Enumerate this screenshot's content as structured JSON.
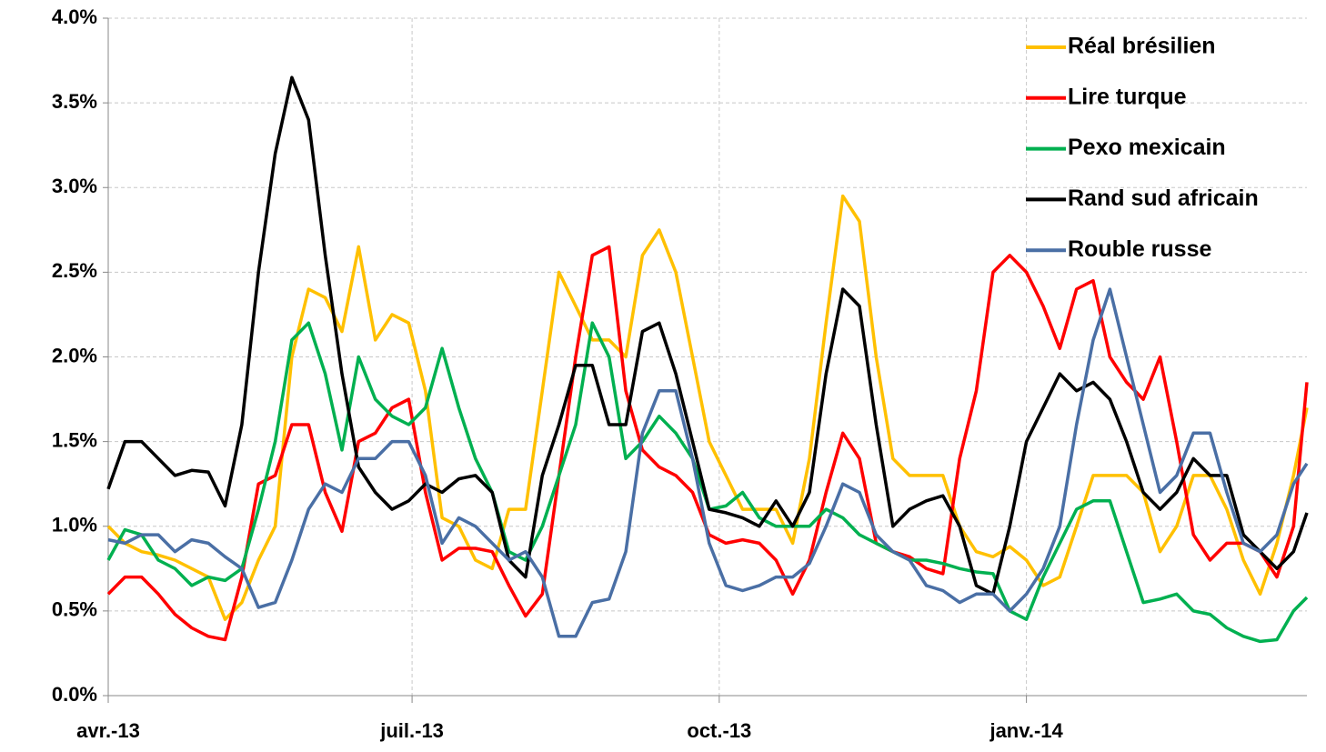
{
  "chart_data": {
    "type": "line",
    "x": [
      0,
      5,
      10,
      15,
      20,
      25,
      30,
      35,
      40,
      45,
      50,
      55,
      60,
      65,
      70,
      75,
      80,
      85,
      90,
      95,
      100,
      105,
      110,
      115,
      120,
      125,
      130,
      135,
      140,
      145,
      150,
      155,
      160,
      165,
      170,
      175,
      180,
      185,
      190,
      195,
      200,
      205,
      210,
      215,
      220,
      225,
      230,
      235,
      240,
      245,
      250,
      255,
      260,
      265,
      270,
      275,
      280,
      285,
      290,
      295,
      300,
      305,
      310,
      315,
      320,
      325,
      330,
      335,
      340,
      345,
      350,
      355,
      359
    ],
    "xlim": [
      0,
      359
    ],
    "xticks": [
      {
        "value": 0,
        "label": "avr.-13"
      },
      {
        "value": 91,
        "label": "juil.-13"
      },
      {
        "value": 183,
        "label": "oct.-13"
      },
      {
        "value": 275,
        "label": "janv.-14"
      }
    ],
    "ylim": [
      0,
      4
    ],
    "yticks": [
      {
        "value": 0,
        "label": "0.0%"
      },
      {
        "value": 0.5,
        "label": "0.5%"
      },
      {
        "value": 1,
        "label": "1.0%"
      },
      {
        "value": 1.5,
        "label": "1.5%"
      },
      {
        "value": 2,
        "label": "2.0%"
      },
      {
        "value": 2.5,
        "label": "2.5%"
      },
      {
        "value": 3,
        "label": "3.0%"
      },
      {
        "value": 3.5,
        "label": "3.5%"
      },
      {
        "value": 4,
        "label": "4.0%"
      }
    ],
    "grid": true,
    "legend": "top-right",
    "series": [
      {
        "name": "Réal brésilien",
        "color": "#ffc000",
        "values": [
          1.0,
          0.9,
          0.85,
          0.83,
          0.8,
          0.75,
          0.7,
          0.45,
          0.55,
          0.8,
          1.0,
          2.0,
          2.4,
          2.35,
          2.15,
          2.65,
          2.1,
          2.25,
          2.2,
          1.8,
          1.05,
          1.0,
          0.8,
          0.75,
          1.1,
          1.1,
          1.8,
          2.5,
          2.3,
          2.1,
          2.1,
          2.0,
          2.6,
          2.75,
          2.5,
          2.0,
          1.5,
          1.3,
          1.1,
          1.1,
          1.1,
          0.9,
          1.4,
          2.2,
          2.95,
          2.8,
          2.0,
          1.4,
          1.3,
          1.3,
          1.3,
          1.0,
          0.85,
          0.82,
          0.88,
          0.8,
          0.65,
          0.7,
          1.0,
          1.3,
          1.3,
          1.3,
          1.2,
          0.85,
          1.0,
          1.3,
          1.3,
          1.1,
          0.8,
          0.6,
          0.9,
          1.3,
          1.7
        ]
      },
      {
        "name": "Lire turque",
        "color": "#ff0000",
        "values": [
          0.6,
          0.7,
          0.7,
          0.6,
          0.48,
          0.4,
          0.35,
          0.33,
          0.7,
          1.25,
          1.3,
          1.6,
          1.6,
          1.2,
          0.97,
          1.5,
          1.55,
          1.7,
          1.75,
          1.2,
          0.8,
          0.87,
          0.87,
          0.85,
          0.65,
          0.47,
          0.6,
          1.3,
          2.0,
          2.6,
          2.65,
          1.8,
          1.45,
          1.35,
          1.3,
          1.2,
          0.95,
          0.9,
          0.92,
          0.9,
          0.8,
          0.6,
          0.8,
          1.2,
          1.55,
          1.4,
          0.9,
          0.85,
          0.82,
          0.75,
          0.72,
          1.4,
          1.8,
          2.5,
          2.6,
          2.5,
          2.3,
          2.05,
          2.4,
          2.45,
          2.0,
          1.85,
          1.75,
          2.0,
          1.5,
          0.95,
          0.8,
          0.9,
          0.9,
          0.85,
          0.7,
          1.0,
          1.85
        ]
      },
      {
        "name": "Pexo mexicain",
        "color": "#00b050",
        "values": [
          0.8,
          0.98,
          0.95,
          0.8,
          0.75,
          0.65,
          0.7,
          0.68,
          0.75,
          1.1,
          1.5,
          2.1,
          2.2,
          1.9,
          1.45,
          2.0,
          1.75,
          1.65,
          1.6,
          1.7,
          2.05,
          1.7,
          1.4,
          1.2,
          0.85,
          0.8,
          1.0,
          1.3,
          1.6,
          2.2,
          2.0,
          1.4,
          1.5,
          1.65,
          1.55,
          1.4,
          1.1,
          1.12,
          1.2,
          1.05,
          1.0,
          1.0,
          1.0,
          1.1,
          1.05,
          0.95,
          0.9,
          0.85,
          0.8,
          0.8,
          0.78,
          0.75,
          0.73,
          0.72,
          0.5,
          0.45,
          0.7,
          0.9,
          1.1,
          1.15,
          1.15,
          0.85,
          0.55,
          0.57,
          0.6,
          0.5,
          0.48,
          0.4,
          0.35,
          0.32,
          0.33,
          0.5,
          0.58
        ]
      },
      {
        "name": "Rand sud africain",
        "color": "#000000",
        "values": [
          1.22,
          1.5,
          1.5,
          1.4,
          1.3,
          1.33,
          1.32,
          1.12,
          1.6,
          2.5,
          3.2,
          3.65,
          3.4,
          2.6,
          1.9,
          1.35,
          1.2,
          1.1,
          1.15,
          1.25,
          1.2,
          1.28,
          1.3,
          1.2,
          0.8,
          0.7,
          1.3,
          1.6,
          1.95,
          1.95,
          1.6,
          1.6,
          2.15,
          2.2,
          1.9,
          1.5,
          1.1,
          1.08,
          1.05,
          1.0,
          1.15,
          1.0,
          1.2,
          1.9,
          2.4,
          2.3,
          1.6,
          1.0,
          1.1,
          1.15,
          1.18,
          1.0,
          0.65,
          0.6,
          1.0,
          1.5,
          1.7,
          1.9,
          1.8,
          1.85,
          1.75,
          1.5,
          1.2,
          1.1,
          1.2,
          1.4,
          1.3,
          1.3,
          0.95,
          0.85,
          0.75,
          0.85,
          1.08
        ]
      },
      {
        "name": "Rouble russe",
        "color": "#4a6fa5",
        "values": [
          0.92,
          0.9,
          0.95,
          0.95,
          0.85,
          0.92,
          0.9,
          0.82,
          0.75,
          0.52,
          0.55,
          0.8,
          1.1,
          1.25,
          1.2,
          1.4,
          1.4,
          1.5,
          1.5,
          1.3,
          0.9,
          1.05,
          1.0,
          0.9,
          0.8,
          0.85,
          0.7,
          0.35,
          0.35,
          0.55,
          0.57,
          0.85,
          1.55,
          1.8,
          1.8,
          1.4,
          0.9,
          0.65,
          0.62,
          0.65,
          0.7,
          0.7,
          0.78,
          1.0,
          1.25,
          1.2,
          0.95,
          0.85,
          0.8,
          0.65,
          0.62,
          0.55,
          0.6,
          0.6,
          0.5,
          0.6,
          0.75,
          1.0,
          1.6,
          2.1,
          2.4,
          2.0,
          1.6,
          1.2,
          1.3,
          1.55,
          1.55,
          1.2,
          0.9,
          0.85,
          0.95,
          1.25,
          1.37
        ]
      }
    ]
  }
}
